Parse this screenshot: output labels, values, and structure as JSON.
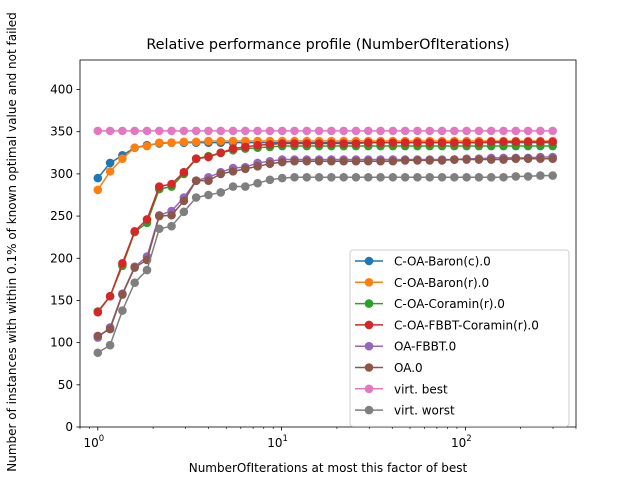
{
  "chart_data": {
    "type": "line",
    "title": "Relative performance profile (NumberOfIterations)",
    "xlabel": "NumberOfIterations at most this factor of best",
    "ylabel": "Number of instances with within 0.1% of known optimal value and not failed",
    "xscale": "log",
    "xlim": [
      0.8,
      400
    ],
    "ylim": [
      0,
      435
    ],
    "xticks": [
      1,
      10,
      100
    ],
    "xtick_labels": [
      "10^0",
      "10^1",
      "10^2"
    ],
    "yticks": [
      0,
      50,
      100,
      150,
      200,
      250,
      300,
      350,
      400
    ],
    "ytick_labels": [
      "0",
      "50",
      "100",
      "150",
      "200",
      "250",
      "300",
      "350",
      "400"
    ],
    "grid": false,
    "legend_position": "lower right",
    "markers": true,
    "x": [
      1.0,
      1.1665,
      1.3608,
      1.5874,
      1.8517,
      2.1601,
      2.5198,
      2.9395,
      3.429,
      4.0,
      4.6661,
      5.4432,
      6.3496,
      7.407,
      8.6403,
      10.0793,
      11.7578,
      13.7157,
      16.0,
      18.6645,
      21.7728,
      25.3984,
      29.6279,
      34.5615,
      40.3168,
      47.0305,
      54.862,
      64.0,
      74.658,
      87.0912,
      101.5937,
      118.5117,
      138.2462,
      161.267,
      188.1218,
      219.4482,
      256.0,
      298.632
    ],
    "series": [
      {
        "name": "C-OA-Baron(c).0",
        "color": "#1f77b4",
        "values": [
          295,
          313,
          322,
          331,
          334,
          336,
          337,
          337,
          337,
          337,
          337,
          337,
          337,
          337,
          337,
          337,
          337,
          337,
          337,
          337,
          337,
          337,
          337,
          337,
          337,
          337,
          337,
          337,
          337,
          337,
          337,
          337,
          337,
          337,
          337,
          337,
          337,
          337
        ]
      },
      {
        "name": "C-OA-Baron(r).0",
        "color": "#ff7f0e",
        "values": [
          281,
          303,
          318,
          331,
          333,
          337,
          337,
          338,
          338,
          339,
          339,
          339,
          339,
          339,
          339,
          339,
          339,
          339,
          339,
          339,
          339,
          339,
          339,
          339,
          339,
          339,
          339,
          339,
          339,
          339,
          339,
          339,
          339,
          339,
          339,
          339,
          339,
          339
        ]
      },
      {
        "name": "C-OA-Coramin(r).0",
        "color": "#2ca02c",
        "values": [
          137,
          155,
          191,
          231,
          242,
          282,
          285,
          300,
          318,
          321,
          325,
          328,
          330,
          331,
          332,
          333,
          333,
          333,
          333,
          333,
          333,
          333,
          333,
          333,
          333,
          333,
          333,
          333,
          333,
          333,
          333,
          333,
          333,
          333,
          333,
          333,
          333,
          333
        ]
      },
      {
        "name": "C-OA-FBBT-Coramin(r).0",
        "color": "#d62728",
        "values": [
          136,
          155,
          194,
          232,
          246,
          285,
          288,
          302,
          318,
          320,
          325,
          330,
          332,
          334,
          335,
          336,
          336,
          336,
          336,
          336,
          336,
          336,
          337,
          337,
          337,
          337,
          337,
          337,
          337,
          337,
          337,
          337,
          338,
          338,
          338,
          338,
          338,
          338
        ]
      },
      {
        "name": "OA-FBBT.0",
        "color": "#9467bd",
        "values": [
          106,
          118,
          158,
          190,
          202,
          251,
          256,
          272,
          292,
          296,
          302,
          307,
          308,
          313,
          315,
          317,
          317,
          317,
          317,
          317,
          317,
          317,
          317,
          317,
          317,
          317,
          317,
          317,
          317,
          317,
          318,
          318,
          319,
          319,
          319,
          319,
          320,
          320
        ]
      },
      {
        "name": "OA.0",
        "color": "#8c564b",
        "values": [
          108,
          116,
          157,
          189,
          198,
          250,
          251,
          268,
          292,
          292,
          300,
          303,
          306,
          309,
          312,
          314,
          315,
          315,
          315,
          315,
          315,
          315,
          315,
          315,
          315,
          316,
          316,
          316,
          316,
          317,
          317,
          317,
          317,
          317,
          318,
          318,
          318,
          318
        ]
      },
      {
        "name": "virt. best",
        "color": "#e377c2",
        "values": [
          351,
          351,
          351,
          351,
          351,
          351,
          351,
          351,
          351,
          351,
          351,
          351,
          351,
          351,
          351,
          351,
          351,
          351,
          351,
          351,
          351,
          351,
          351,
          351,
          351,
          351,
          351,
          351,
          351,
          351,
          351,
          351,
          351,
          351,
          351,
          351,
          351,
          351
        ]
      },
      {
        "name": "virt. worst",
        "color": "#7f7f7f",
        "values": [
          88,
          97,
          138,
          171,
          186,
          235,
          238,
          255,
          272,
          275,
          278,
          285,
          285,
          289,
          293,
          295,
          296,
          296,
          296,
          296,
          296,
          296,
          296,
          296,
          296,
          296,
          296,
          296,
          296,
          296,
          296,
          296,
          296,
          296,
          297,
          297,
          298,
          298
        ]
      }
    ]
  }
}
